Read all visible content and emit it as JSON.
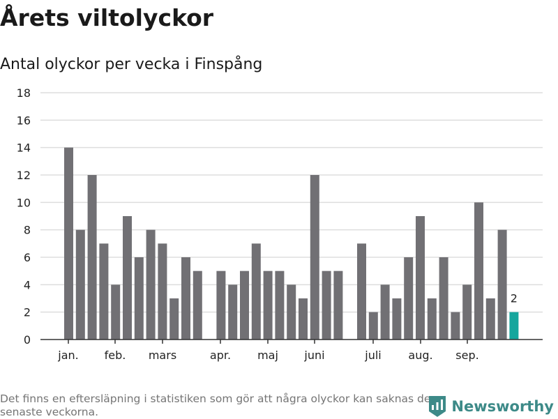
{
  "title": "Årets viltolyckor",
  "subtitle": "Antal olyckor per vecka i Finspång",
  "footnote": "Det finns en eftersläpning i statistiken som gör att några olyckor kan saknas de senaste veckorna.",
  "brand": {
    "name": "Newsworthy",
    "icon": "newsworthy-logo-icon"
  },
  "colors": {
    "bar": "#717074",
    "highlight": "#16a69d",
    "grid": "#dddddd",
    "axis": "#333333"
  },
  "chart_data": {
    "type": "bar",
    "title": "Antal olyckor per vecka i Finspång",
    "xlabel": "",
    "ylabel": "",
    "ylim": [
      0,
      18
    ],
    "yticks": [
      0,
      2,
      4,
      6,
      8,
      10,
      12,
      14,
      16,
      18
    ],
    "grid": true,
    "month_labels": [
      "jan.",
      "feb.",
      "mars",
      "apr.",
      "maj",
      "juni",
      "juli",
      "aug.",
      "sep."
    ],
    "values": [
      14,
      8,
      12,
      7,
      4,
      9,
      6,
      8,
      7,
      3,
      6,
      5,
      null,
      5,
      4,
      5,
      7,
      5,
      5,
      4,
      3,
      12,
      5,
      5,
      null,
      7,
      2,
      4,
      3,
      6,
      9,
      3,
      6,
      2,
      4,
      10,
      3,
      8,
      2
    ],
    "highlight_index": 38,
    "highlight_label": "2"
  }
}
